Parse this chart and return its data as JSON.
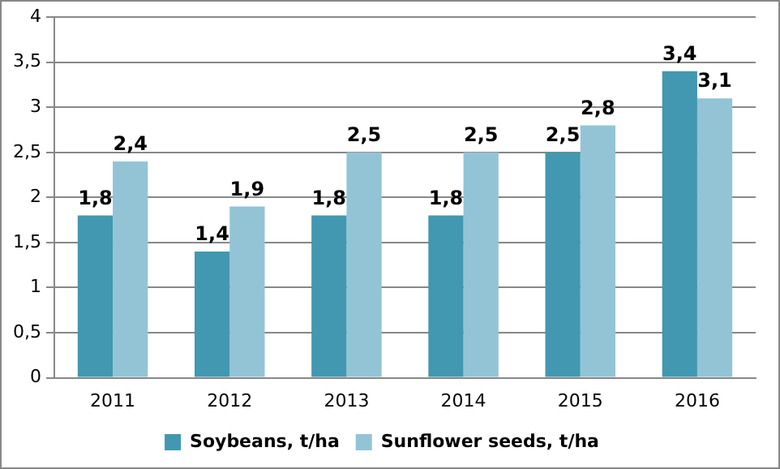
{
  "chart_data": {
    "type": "bar",
    "categories": [
      "2011",
      "2012",
      "2013",
      "2014",
      "2015",
      "2016"
    ],
    "series": [
      {
        "name": "Soybeans, t/ha",
        "color": "#4198b0",
        "values": [
          1.8,
          1.4,
          1.8,
          1.8,
          2.5,
          3.4
        ],
        "value_labels": [
          "1,8",
          "1,4",
          "1,8",
          "1,8",
          "2,5",
          "3,4"
        ]
      },
      {
        "name": "Sunflower seeds, t/ha",
        "color": "#93c4d6",
        "values": [
          2.4,
          1.9,
          2.5,
          2.5,
          2.8,
          3.1
        ],
        "value_labels": [
          "2,4",
          "1,9",
          "2,5",
          "2,5",
          "2,8",
          "3,1"
        ]
      }
    ],
    "ylim": [
      0,
      4
    ],
    "yticks": [
      0,
      {
        "value": 0.5,
        "label": "0,5"
      },
      1,
      {
        "value": 1.5,
        "label": "1,5"
      },
      2,
      {
        "value": 2.5,
        "label": "2,5"
      },
      3,
      {
        "value": 3.5,
        "label": "3,5"
      },
      4
    ],
    "grid": "y",
    "legend": "bottom"
  }
}
